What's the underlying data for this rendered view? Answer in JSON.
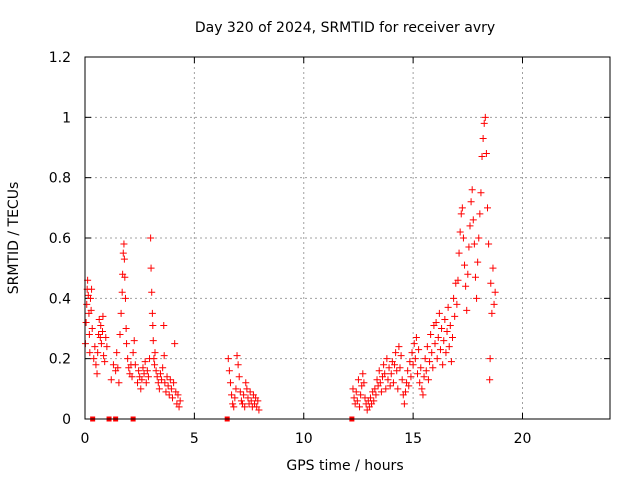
{
  "chart_data": {
    "type": "scatter",
    "title": "Day 320 of 2024, SRMTID for receiver avry",
    "xlabel": "GPS time / hours",
    "ylabel": "SRMTID / TECUs",
    "xlim": [
      0,
      24
    ],
    "ylim": [
      0,
      1.2
    ],
    "x_ticks": [
      0,
      5,
      10,
      15,
      20
    ],
    "y_ticks": [
      0,
      0.2,
      0.4,
      0.6,
      0.8,
      1,
      1.2
    ],
    "x_tick_labels": [
      "0",
      "5",
      "10",
      "15",
      "20"
    ],
    "y_tick_labels": [
      "0",
      "0.2",
      "0.4",
      "0.6",
      "0.8",
      "1",
      "1.2"
    ],
    "grid": true,
    "marker": "+",
    "color": "#ff0000",
    "zero_markers": [
      0.35,
      1.1,
      1.4,
      2.2,
      6.5,
      12.2
    ],
    "series": [
      {
        "name": "avry",
        "points": [
          [
            0.02,
            0.25
          ],
          [
            0.05,
            0.32
          ],
          [
            0.08,
            0.38
          ],
          [
            0.1,
            0.43
          ],
          [
            0.12,
            0.46
          ],
          [
            0.15,
            0.41
          ],
          [
            0.18,
            0.35
          ],
          [
            0.2,
            0.28
          ],
          [
            0.22,
            0.22
          ],
          [
            0.25,
            0.4
          ],
          [
            0.28,
            0.36
          ],
          [
            0.3,
            0.43
          ],
          [
            0.33,
            0.3
          ],
          [
            0.4,
            0.2
          ],
          [
            0.45,
            0.24
          ],
          [
            0.5,
            0.18
          ],
          [
            0.55,
            0.15
          ],
          [
            0.58,
            0.22
          ],
          [
            0.62,
            0.28
          ],
          [
            0.65,
            0.33
          ],
          [
            0.7,
            0.27
          ],
          [
            0.72,
            0.31
          ],
          [
            0.75,
            0.25
          ],
          [
            0.8,
            0.29
          ],
          [
            0.82,
            0.34
          ],
          [
            0.85,
            0.21
          ],
          [
            0.9,
            0.19
          ],
          [
            0.95,
            0.27
          ],
          [
            1.0,
            0.24
          ],
          [
            1.2,
            0.13
          ],
          [
            1.3,
            0.18
          ],
          [
            1.4,
            0.16
          ],
          [
            1.45,
            0.22
          ],
          [
            1.5,
            0.17
          ],
          [
            1.55,
            0.12
          ],
          [
            1.6,
            0.28
          ],
          [
            1.65,
            0.35
          ],
          [
            1.7,
            0.42
          ],
          [
            1.72,
            0.48
          ],
          [
            1.75,
            0.55
          ],
          [
            1.78,
            0.58
          ],
          [
            1.8,
            0.53
          ],
          [
            1.82,
            0.47
          ],
          [
            1.85,
            0.4
          ],
          [
            1.88,
            0.3
          ],
          [
            1.9,
            0.25
          ],
          [
            1.95,
            0.2
          ],
          [
            2.0,
            0.17
          ],
          [
            2.05,
            0.15
          ],
          [
            2.1,
            0.18
          ],
          [
            2.15,
            0.14
          ],
          [
            2.2,
            0.22
          ],
          [
            2.25,
            0.26
          ],
          [
            2.3,
            0.18
          ],
          [
            2.4,
            0.12
          ],
          [
            2.45,
            0.16
          ],
          [
            2.5,
            0.14
          ],
          [
            2.55,
            0.1
          ],
          [
            2.6,
            0.13
          ],
          [
            2.65,
            0.17
          ],
          [
            2.7,
            0.15
          ],
          [
            2.75,
            0.19
          ],
          [
            2.8,
            0.12
          ],
          [
            2.85,
            0.16
          ],
          [
            2.9,
            0.14
          ],
          [
            2.95,
            0.2
          ],
          [
            3.0,
            0.6
          ],
          [
            3.02,
            0.5
          ],
          [
            3.05,
            0.42
          ],
          [
            3.08,
            0.35
          ],
          [
            3.1,
            0.31
          ],
          [
            3.12,
            0.26
          ],
          [
            3.15,
            0.2
          ],
          [
            3.18,
            0.18
          ],
          [
            3.2,
            0.22
          ],
          [
            3.25,
            0.16
          ],
          [
            3.3,
            0.14
          ],
          [
            3.35,
            0.12
          ],
          [
            3.4,
            0.1
          ],
          [
            3.45,
            0.15
          ],
          [
            3.5,
            0.13
          ],
          [
            3.55,
            0.17
          ],
          [
            3.6,
            0.31
          ],
          [
            3.62,
            0.21
          ],
          [
            3.65,
            0.12
          ],
          [
            3.7,
            0.09
          ],
          [
            3.75,
            0.14
          ],
          [
            3.8,
            0.11
          ],
          [
            3.85,
            0.08
          ],
          [
            3.9,
            0.13
          ],
          [
            3.95,
            0.1
          ],
          [
            4.0,
            0.07
          ],
          [
            4.05,
            0.12
          ],
          [
            4.1,
            0.25
          ],
          [
            4.15,
            0.09
          ],
          [
            4.2,
            0.05
          ],
          [
            4.25,
            0.08
          ],
          [
            4.3,
            0.04
          ],
          [
            4.35,
            0.06
          ],
          [
            6.55,
            0.2
          ],
          [
            6.6,
            0.16
          ],
          [
            6.65,
            0.12
          ],
          [
            6.7,
            0.08
          ],
          [
            6.75,
            0.05
          ],
          [
            6.8,
            0.04
          ],
          [
            6.85,
            0.07
          ],
          [
            6.9,
            0.1
          ],
          [
            6.95,
            0.21
          ],
          [
            7.0,
            0.18
          ],
          [
            7.05,
            0.14
          ],
          [
            7.1,
            0.09
          ],
          [
            7.15,
            0.06
          ],
          [
            7.2,
            0.05
          ],
          [
            7.25,
            0.08
          ],
          [
            7.3,
            0.04
          ],
          [
            7.35,
            0.12
          ],
          [
            7.4,
            0.1
          ],
          [
            7.45,
            0.07
          ],
          [
            7.5,
            0.05
          ],
          [
            7.55,
            0.09
          ],
          [
            7.6,
            0.06
          ],
          [
            7.65,
            0.04
          ],
          [
            7.7,
            0.08
          ],
          [
            7.75,
            0.05
          ],
          [
            7.8,
            0.07
          ],
          [
            7.85,
            0.04
          ],
          [
            7.9,
            0.06
          ],
          [
            7.95,
            0.03
          ],
          [
            12.25,
            0.1
          ],
          [
            12.3,
            0.07
          ],
          [
            12.35,
            0.05
          ],
          [
            12.4,
            0.09
          ],
          [
            12.45,
            0.06
          ],
          [
            12.5,
            0.13
          ],
          [
            12.55,
            0.04
          ],
          [
            12.6,
            0.08
          ],
          [
            12.65,
            0.11
          ],
          [
            12.7,
            0.15
          ],
          [
            12.75,
            0.12
          ],
          [
            12.8,
            0.07
          ],
          [
            12.85,
            0.05
          ],
          [
            12.9,
            0.03
          ],
          [
            12.95,
            0.06
          ],
          [
            13.0,
            0.04
          ],
          [
            13.05,
            0.07
          ],
          [
            13.1,
            0.05
          ],
          [
            13.15,
            0.09
          ],
          [
            13.2,
            0.06
          ],
          [
            13.25,
            0.1
          ],
          [
            13.3,
            0.08
          ],
          [
            13.35,
            0.13
          ],
          [
            13.4,
            0.11
          ],
          [
            13.45,
            0.16
          ],
          [
            13.5,
            0.12
          ],
          [
            13.55,
            0.09
          ],
          [
            13.6,
            0.14
          ],
          [
            13.65,
            0.18
          ],
          [
            13.7,
            0.15
          ],
          [
            13.75,
            0.1
          ],
          [
            13.8,
            0.2
          ],
          [
            13.85,
            0.13
          ],
          [
            13.9,
            0.17
          ],
          [
            13.95,
            0.11
          ],
          [
            14.0,
            0.15
          ],
          [
            14.05,
            0.19
          ],
          [
            14.1,
            0.12
          ],
          [
            14.15,
            0.18
          ],
          [
            14.2,
            0.22
          ],
          [
            14.25,
            0.16
          ],
          [
            14.3,
            0.1
          ],
          [
            14.35,
            0.24
          ],
          [
            14.4,
            0.17
          ],
          [
            14.45,
            0.21
          ],
          [
            14.5,
            0.13
          ],
          [
            14.55,
            0.08
          ],
          [
            14.6,
            0.05
          ],
          [
            14.65,
            0.09
          ],
          [
            14.7,
            0.12
          ],
          [
            14.75,
            0.16
          ],
          [
            14.8,
            0.11
          ],
          [
            14.85,
            0.19
          ],
          [
            14.9,
            0.14
          ],
          [
            14.95,
            0.22
          ],
          [
            15.0,
            0.18
          ],
          [
            15.05,
            0.25
          ],
          [
            15.1,
            0.2
          ],
          [
            15.15,
            0.27
          ],
          [
            15.2,
            0.15
          ],
          [
            15.25,
            0.23
          ],
          [
            15.3,
            0.12
          ],
          [
            15.35,
            0.17
          ],
          [
            15.4,
            0.1
          ],
          [
            15.45,
            0.08
          ],
          [
            15.5,
            0.14
          ],
          [
            15.55,
            0.2
          ],
          [
            15.6,
            0.16
          ],
          [
            15.65,
            0.24
          ],
          [
            15.7,
            0.13
          ],
          [
            15.75,
            0.19
          ],
          [
            15.8,
            0.28
          ],
          [
            15.85,
            0.22
          ],
          [
            15.9,
            0.17
          ],
          [
            15.95,
            0.31
          ],
          [
            16.0,
            0.25
          ],
          [
            16.05,
            0.32
          ],
          [
            16.1,
            0.2
          ],
          [
            16.15,
            0.27
          ],
          [
            16.2,
            0.35
          ],
          [
            16.25,
            0.23
          ],
          [
            16.3,
            0.3
          ],
          [
            16.35,
            0.18
          ],
          [
            16.4,
            0.26
          ],
          [
            16.45,
            0.33
          ],
          [
            16.5,
            0.22
          ],
          [
            16.55,
            0.29
          ],
          [
            16.6,
            0.37
          ],
          [
            16.65,
            0.24
          ],
          [
            16.7,
            0.31
          ],
          [
            16.75,
            0.19
          ],
          [
            16.8,
            0.27
          ],
          [
            16.85,
            0.4
          ],
          [
            16.9,
            0.34
          ],
          [
            16.95,
            0.45
          ],
          [
            17.0,
            0.38
          ],
          [
            17.05,
            0.46
          ],
          [
            17.1,
            0.55
          ],
          [
            17.15,
            0.62
          ],
          [
            17.2,
            0.68
          ],
          [
            17.25,
            0.7
          ],
          [
            17.3,
            0.6
          ],
          [
            17.35,
            0.51
          ],
          [
            17.4,
            0.44
          ],
          [
            17.45,
            0.36
          ],
          [
            17.5,
            0.48
          ],
          [
            17.55,
            0.57
          ],
          [
            17.6,
            0.64
          ],
          [
            17.65,
            0.72
          ],
          [
            17.7,
            0.76
          ],
          [
            17.75,
            0.66
          ],
          [
            17.8,
            0.58
          ],
          [
            17.85,
            0.47
          ],
          [
            17.9,
            0.4
          ],
          [
            17.95,
            0.52
          ],
          [
            18.0,
            0.6
          ],
          [
            18.05,
            0.68
          ],
          [
            18.1,
            0.75
          ],
          [
            18.15,
            0.87
          ],
          [
            18.2,
            0.93
          ],
          [
            18.25,
            0.98
          ],
          [
            18.3,
            1.0
          ],
          [
            18.35,
            0.88
          ],
          [
            18.4,
            0.7
          ],
          [
            18.45,
            0.58
          ],
          [
            18.5,
            0.13
          ],
          [
            18.52,
            0.2
          ],
          [
            18.55,
            0.45
          ],
          [
            18.6,
            0.35
          ],
          [
            18.65,
            0.5
          ],
          [
            18.7,
            0.38
          ],
          [
            18.75,
            0.42
          ]
        ]
      }
    ]
  }
}
